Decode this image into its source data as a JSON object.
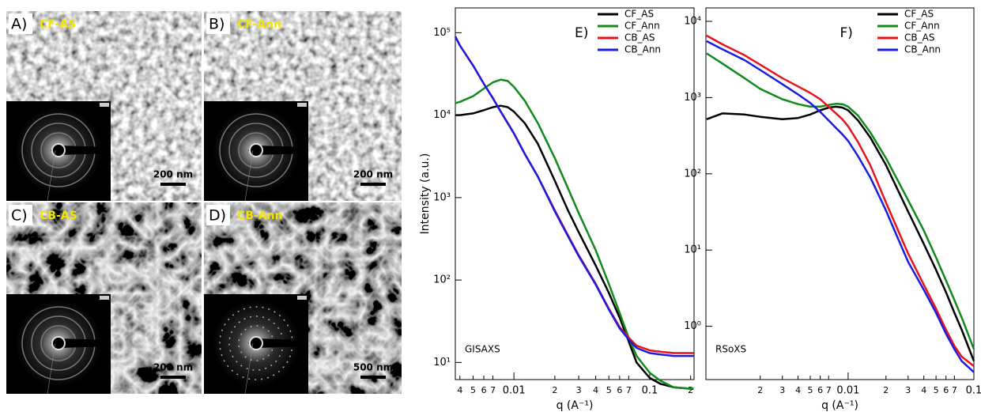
{
  "panels": [
    {
      "label": "A)",
      "name": "CF-AS",
      "scale": "200 nm"
    },
    {
      "label": "B)",
      "name": "CF-Ann",
      "scale": "200 nm"
    },
    {
      "label": "C)",
      "name": "CB-AS",
      "scale": "200 nm"
    },
    {
      "label": "D)",
      "name": "CB-Ann",
      "scale": "500 nm"
    }
  ],
  "chart_data": [
    {
      "type": "line",
      "panel_label": "E)",
      "annotation": "GISAXS",
      "ylabel": "Intensity (a.u.)",
      "xlabel": "q (A⁻¹)",
      "xscale": "log",
      "yscale": "log",
      "grid": false,
      "legend": "top-right",
      "xlim": [
        0.0037,
        0.212
      ],
      "ylim": [
        6.2,
        200000
      ],
      "xticks": [
        {
          "value": 0.004,
          "label": "4"
        },
        {
          "value": 0.005,
          "label": "5"
        },
        {
          "value": 0.006,
          "label": "6"
        },
        {
          "value": 0.007,
          "label": "7"
        },
        0.01,
        {
          "value": 0.02,
          "label": "2"
        },
        {
          "value": 0.03,
          "label": "3"
        },
        {
          "value": 0.04,
          "label": "4"
        },
        {
          "value": 0.05,
          "label": "5"
        },
        {
          "value": 0.06,
          "label": "6"
        },
        {
          "value": 0.07,
          "label": "7"
        },
        0.1,
        {
          "value": 0.2,
          "label": "2"
        }
      ],
      "yticks": [
        {
          "value": 10,
          "label": "10¹"
        },
        {
          "value": 100,
          "label": "10²"
        },
        {
          "value": 1000,
          "label": "10³"
        },
        {
          "value": 10000,
          "label": "10⁴"
        },
        {
          "value": 100000,
          "label": "10⁵"
        }
      ],
      "x": [
        0.0037,
        0.004,
        0.005,
        0.006,
        0.007,
        0.008,
        0.009,
        0.01,
        0.012,
        0.015,
        0.02,
        0.025,
        0.03,
        0.04,
        0.05,
        0.06,
        0.07,
        0.08,
        0.1,
        0.12,
        0.15,
        0.2,
        0.21
      ],
      "series": [
        {
          "name": "CF_AS",
          "color": "#000000",
          "values": [
            10000,
            10000,
            10500,
            11500,
            12500,
            13000,
            12500,
            11000,
            8000,
            4500,
            1600,
            700,
            380,
            150,
            70,
            35,
            18,
            10,
            6.5,
            5.5,
            5,
            4.8,
            4.8
          ]
        },
        {
          "name": "CF_Ann",
          "color": "#118a1a",
          "values": [
            14000,
            14500,
            17000,
            21000,
            25000,
            27000,
            26000,
            22000,
            15000,
            8000,
            3000,
            1300,
            650,
            230,
            90,
            40,
            20,
            12,
            7.5,
            6,
            5,
            4.8,
            4.9
          ]
        },
        {
          "name": "CB_AS",
          "color": "#e8141b",
          "values": [
            90000,
            70000,
            40000,
            24000,
            16000,
            11000,
            8000,
            6000,
            3400,
            1800,
            700,
            350,
            200,
            90,
            45,
            27,
            20,
            16,
            14,
            13.5,
            13,
            13,
            13
          ]
        },
        {
          "name": "CB_Ann",
          "color": "#1c1ce0",
          "values": [
            90000,
            70000,
            40000,
            24000,
            16000,
            11000,
            8000,
            6000,
            3400,
            1800,
            680,
            340,
            195,
            88,
            44,
            26,
            19,
            15,
            13,
            12.5,
            12,
            12,
            12
          ]
        }
      ]
    },
    {
      "type": "line",
      "panel_label": "F)",
      "annotation": "RSoXS",
      "xlabel": "q (A⁻¹)",
      "xscale": "log",
      "yscale": "log",
      "grid": false,
      "legend": "top-right",
      "xlim": [
        0.00074,
        0.1
      ],
      "ylim": [
        0.2,
        15000
      ],
      "xticks": [
        {
          "value": 0.002,
          "label": "2"
        },
        {
          "value": 0.003,
          "label": "3"
        },
        {
          "value": 0.004,
          "label": "4"
        },
        {
          "value": 0.005,
          "label": "5"
        },
        {
          "value": 0.006,
          "label": "6"
        },
        {
          "value": 0.007,
          "label": "7"
        },
        0.01,
        {
          "value": 0.02,
          "label": "2"
        },
        {
          "value": 0.03,
          "label": "3"
        },
        {
          "value": 0.04,
          "label": "4"
        },
        {
          "value": 0.05,
          "label": "5"
        },
        {
          "value": 0.06,
          "label": "6"
        },
        {
          "value": 0.07,
          "label": "7"
        },
        0.1
      ],
      "yticks": [
        {
          "value": 1,
          "label": "10⁰"
        },
        {
          "value": 10,
          "label": "10¹"
        },
        {
          "value": 100,
          "label": "10²"
        },
        {
          "value": 1000,
          "label": "10³"
        },
        {
          "value": 10000,
          "label": "10⁴"
        }
      ],
      "x": [
        0.00075,
        0.001,
        0.0015,
        0.002,
        0.003,
        0.004,
        0.005,
        0.006,
        0.007,
        0.008,
        0.009,
        0.01,
        0.012,
        0.015,
        0.02,
        0.025,
        0.03,
        0.04,
        0.05,
        0.06,
        0.07,
        0.08,
        0.1
      ],
      "series": [
        {
          "name": "CF_AS",
          "color": "#000000",
          "values": [
            520,
            620,
            600,
            560,
            520,
            540,
            600,
            680,
            740,
            760,
            740,
            680,
            500,
            300,
            130,
            60,
            32,
            12,
            5.5,
            2.8,
            1.5,
            0.9,
            0.35
          ]
        },
        {
          "name": "CF_Ann",
          "color": "#118a1a",
          "values": [
            3800,
            2800,
            1800,
            1300,
            950,
            820,
            760,
            760,
            800,
            830,
            820,
            760,
            580,
            350,
            160,
            80,
            45,
            18,
            8,
            4,
            2.2,
            1.3,
            0.5
          ]
        },
        {
          "name": "CB_AS",
          "color": "#e8141b",
          "values": [
            6500,
            5000,
            3600,
            2700,
            1800,
            1400,
            1150,
            950,
            760,
            620,
            520,
            420,
            260,
            130,
            42,
            18,
            9,
            3.5,
            1.7,
            0.9,
            0.55,
            0.4,
            0.3
          ]
        },
        {
          "name": "CB_Ann",
          "color": "#1c1ce0",
          "values": [
            5500,
            4300,
            3100,
            2300,
            1500,
            1100,
            850,
            650,
            500,
            400,
            330,
            270,
            170,
            90,
            33,
            14,
            7,
            3,
            1.5,
            0.8,
            0.5,
            0.35,
            0.25
          ]
        }
      ]
    }
  ]
}
